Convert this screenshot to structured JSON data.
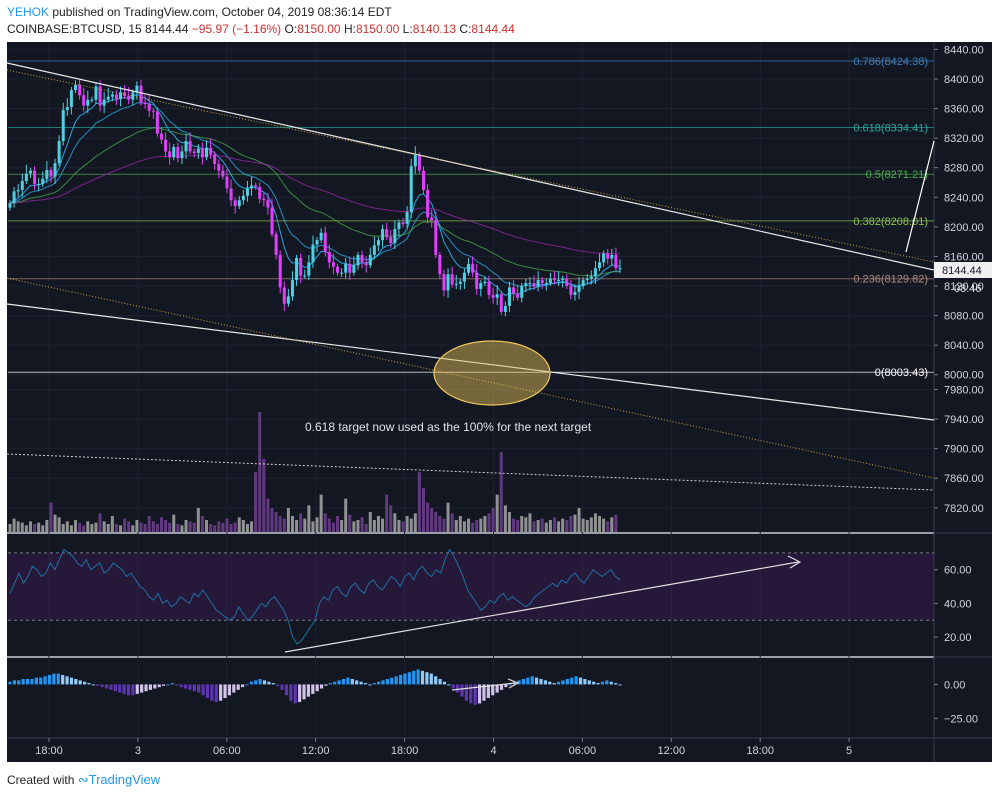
{
  "header": {
    "author": "YEHOK",
    "published": "published on TradingView.com, October 04, 2019 08:36:14 EDT",
    "symbol": "COINBASE:BTCUSD, 15",
    "last": "8144.44",
    "change": "−95.97 (−1.16%)",
    "o_label": "O:",
    "o_value": "8150.00",
    "h_label": "H:",
    "h_value": "8150.00",
    "l_label": "L:",
    "l_value": "8140.13",
    "c_label": "C:",
    "c_value": "8144.44"
  },
  "footer": {
    "created_with": "Created with",
    "brand": "TradingView"
  },
  "colors": {
    "background": "#131722",
    "up": "#4dd0e1",
    "down": "#e040fb",
    "ema_fast": "#29b6f6",
    "ema_mid": "#4caf50",
    "ema_slow": "#9c27b0",
    "fib_0786": "#3f7fbf",
    "fib_0618": "#26a69a",
    "fib_05": "#4caf50",
    "fib_0382": "#8bc34a",
    "fib_0236": "#b0887f",
    "fib_0": "#ffffff",
    "rsi": "#1f6fa3",
    "ellipse": "#f0c85a"
  },
  "chart_data": [
    {
      "type": "candlestick",
      "panel": "price",
      "ylim": [
        7790,
        8450
      ],
      "y_ticks": [
        "8440.00",
        "8400.00",
        "8360.00",
        "8320.00",
        "8280.00",
        "8240.00",
        "8200.00",
        "8160.00",
        "8120.00",
        "8080.00",
        "8040.00",
        "8000.00",
        "7980.00",
        "7940.00",
        "7900.00",
        "7860.00",
        "7820.00"
      ],
      "current_price": "8144.44",
      "countdown": "08:46",
      "fib_levels": [
        {
          "ratio": "0.786",
          "price": 8424.38,
          "label": "0.786(8424.38)"
        },
        {
          "ratio": "0.618",
          "price": 8334.41,
          "label": "0.618(8334.41)"
        },
        {
          "ratio": "0.5",
          "price": 8271.21,
          "label": "0.5(8271.21)"
        },
        {
          "ratio": "0.382",
          "price": 8208.01,
          "label": "0.382(8208.01)"
        },
        {
          "ratio": "0.236",
          "price": 8129.82,
          "label": "0.236(8129.82)"
        },
        {
          "ratio": "0",
          "price": 8003.43,
          "label": "0(8003.43)"
        }
      ],
      "annotation": "0.618 target now used as the 100% for the next target",
      "x_ticks": [
        "18:00",
        "3",
        "06:00",
        "12:00",
        "18:00",
        "4",
        "06:00",
        "12:00",
        "18:00",
        "5"
      ],
      "closes": [
        8232,
        8248,
        8250,
        8262,
        8272,
        8276,
        8258,
        8258,
        8265,
        8277,
        8268,
        8286,
        8316,
        8358,
        8362,
        8385,
        8392,
        8378,
        8364,
        8372,
        8372,
        8390,
        8364,
        8372,
        8376,
        8379,
        8373,
        8382,
        8377,
        8372,
        8382,
        8391,
        8368,
        8366,
        8357,
        8356,
        8326,
        8318,
        8302,
        8294,
        8308,
        8293,
        8302,
        8316,
        8302,
        8300,
        8306,
        8294,
        8307,
        8298,
        8285,
        8276,
        8268,
        8252,
        8236,
        8228,
        8236,
        8242,
        8252,
        8256,
        8254,
        8238,
        8236,
        8226,
        8190,
        8162,
        8118,
        8096,
        8106,
        8128,
        8158,
        8134,
        8134,
        8152,
        8176,
        8182,
        8192,
        8166,
        8152,
        8146,
        8138,
        8138,
        8150,
        8138,
        8148,
        8162,
        8152,
        8148,
        8162,
        8175,
        8182,
        8197,
        8186,
        8178,
        8197,
        8206,
        8204,
        8220,
        8282,
        8297,
        8276,
        8250,
        8213,
        8209,
        8162,
        8136,
        8114,
        8136,
        8122,
        8123,
        8126,
        8138,
        8150,
        8138,
        8116,
        8124,
        8126,
        8108,
        8104,
        8109,
        8085,
        8093,
        8118,
        8110,
        8104,
        8120,
        8124,
        8124,
        8119,
        8128,
        8124,
        8124,
        8130,
        8128,
        8128,
        8130,
        8120,
        8108,
        8112,
        8120,
        8128,
        8130,
        8133,
        8144,
        8152,
        8164,
        8157,
        8162,
        8144,
        8144
      ]
    },
    {
      "type": "bar",
      "panel": "volume",
      "values_relative": [
        6,
        10,
        8,
        7,
        5,
        8,
        6,
        7,
        5,
        9,
        22,
        13,
        11,
        6,
        8,
        5,
        9,
        7,
        5,
        8,
        6,
        7,
        14,
        8,
        6,
        12,
        6,
        5,
        10,
        8,
        5,
        9,
        7,
        6,
        12,
        8,
        6,
        11,
        9,
        7,
        13,
        6,
        5,
        9,
        8,
        7,
        18,
        12,
        9,
        6,
        5,
        8,
        7,
        10,
        6,
        7,
        11,
        9,
        6,
        8,
        45,
        90,
        55,
        25,
        18,
        15,
        12,
        10,
        18,
        12,
        9,
        14,
        10,
        20,
        8,
        11,
        28,
        14,
        10,
        7,
        12,
        9,
        25,
        13,
        8,
        9,
        11,
        6,
        15,
        9,
        12,
        10,
        28,
        20,
        14,
        9,
        8,
        12,
        10,
        14,
        45,
        33,
        22,
        18,
        15,
        12,
        10,
        22,
        14,
        9,
        12,
        8,
        10,
        7,
        9,
        10,
        12,
        14,
        18,
        28,
        60,
        20,
        15,
        10,
        9,
        12,
        11,
        14,
        8,
        9,
        10,
        7,
        9,
        11,
        8,
        10,
        9,
        12,
        13,
        18,
        10,
        9,
        11,
        14,
        12,
        10,
        8,
        11,
        13
      ]
    },
    {
      "type": "line",
      "panel": "rsi",
      "ylim": [
        10,
        80
      ],
      "y_ticks": [
        "60.00",
        "40.00",
        "20.00"
      ],
      "bands": [
        70,
        30
      ],
      "values": [
        46,
        52,
        58,
        52,
        56,
        62,
        60,
        56,
        58,
        64,
        60,
        66,
        72,
        70,
        68,
        64,
        62,
        66,
        60,
        62,
        64,
        58,
        60,
        64,
        62,
        60,
        56,
        58,
        54,
        50,
        48,
        44,
        42,
        46,
        40,
        42,
        38,
        40,
        44,
        42,
        40,
        46,
        44,
        48,
        44,
        40,
        36,
        34,
        32,
        30,
        32,
        38,
        34,
        30,
        32,
        36,
        40,
        38,
        42,
        44,
        40,
        36,
        30,
        20,
        16,
        18,
        22,
        26,
        30,
        40,
        44,
        42,
        48,
        50,
        46,
        44,
        50,
        52,
        48,
        46,
        52,
        54,
        50,
        48,
        52,
        56,
        54,
        50,
        56,
        58,
        54,
        60,
        62,
        58,
        56,
        60,
        58,
        66,
        72,
        68,
        62,
        56,
        48,
        44,
        40,
        36,
        38,
        42,
        40,
        44,
        46,
        42,
        44,
        42,
        40,
        38,
        40,
        44,
        46,
        48,
        50,
        52,
        50,
        54,
        52,
        56,
        58,
        54,
        52,
        56,
        60,
        58,
        56,
        58,
        60,
        56,
        54
      ]
    },
    {
      "type": "histogram",
      "panel": "macd",
      "ylim": [
        -38,
        18
      ],
      "y_ticks": [
        "0.00",
        "−25.00"
      ],
      "values": [
        2,
        3,
        3,
        4,
        4,
        4,
        5,
        5,
        6,
        7,
        8,
        8,
        7,
        6,
        5,
        4,
        3,
        2,
        1,
        0,
        -1,
        -2,
        -3,
        -4,
        -5,
        -6,
        -7,
        -8,
        -8,
        -7,
        -6,
        -5,
        -4,
        -3,
        -2,
        -1,
        0,
        1,
        -1,
        -2,
        -3,
        -4,
        -5,
        -6,
        -8,
        -10,
        -12,
        -13,
        -12,
        -10,
        -8,
        -6,
        -4,
        -2,
        0,
        2,
        3,
        4,
        3,
        2,
        1,
        -1,
        -4,
        -8,
        -12,
        -14,
        -13,
        -11,
        -9,
        -7,
        -5,
        -3,
        -1,
        1,
        2,
        3,
        4,
        5,
        4,
        3,
        2,
        1,
        0,
        1,
        2,
        3,
        4,
        5,
        6,
        7,
        8,
        9,
        10,
        11,
        10,
        9,
        8,
        6,
        4,
        2,
        0,
        -3,
        -6,
        -9,
        -12,
        -14,
        -15,
        -14,
        -12,
        -10,
        -8,
        -6,
        -4,
        -2,
        0,
        2,
        3,
        4,
        5,
        6,
        5,
        4,
        3,
        2,
        1,
        2,
        3,
        4,
        5,
        6,
        5,
        4,
        3,
        2,
        1,
        2,
        3,
        2,
        1,
        0
      ]
    }
  ]
}
